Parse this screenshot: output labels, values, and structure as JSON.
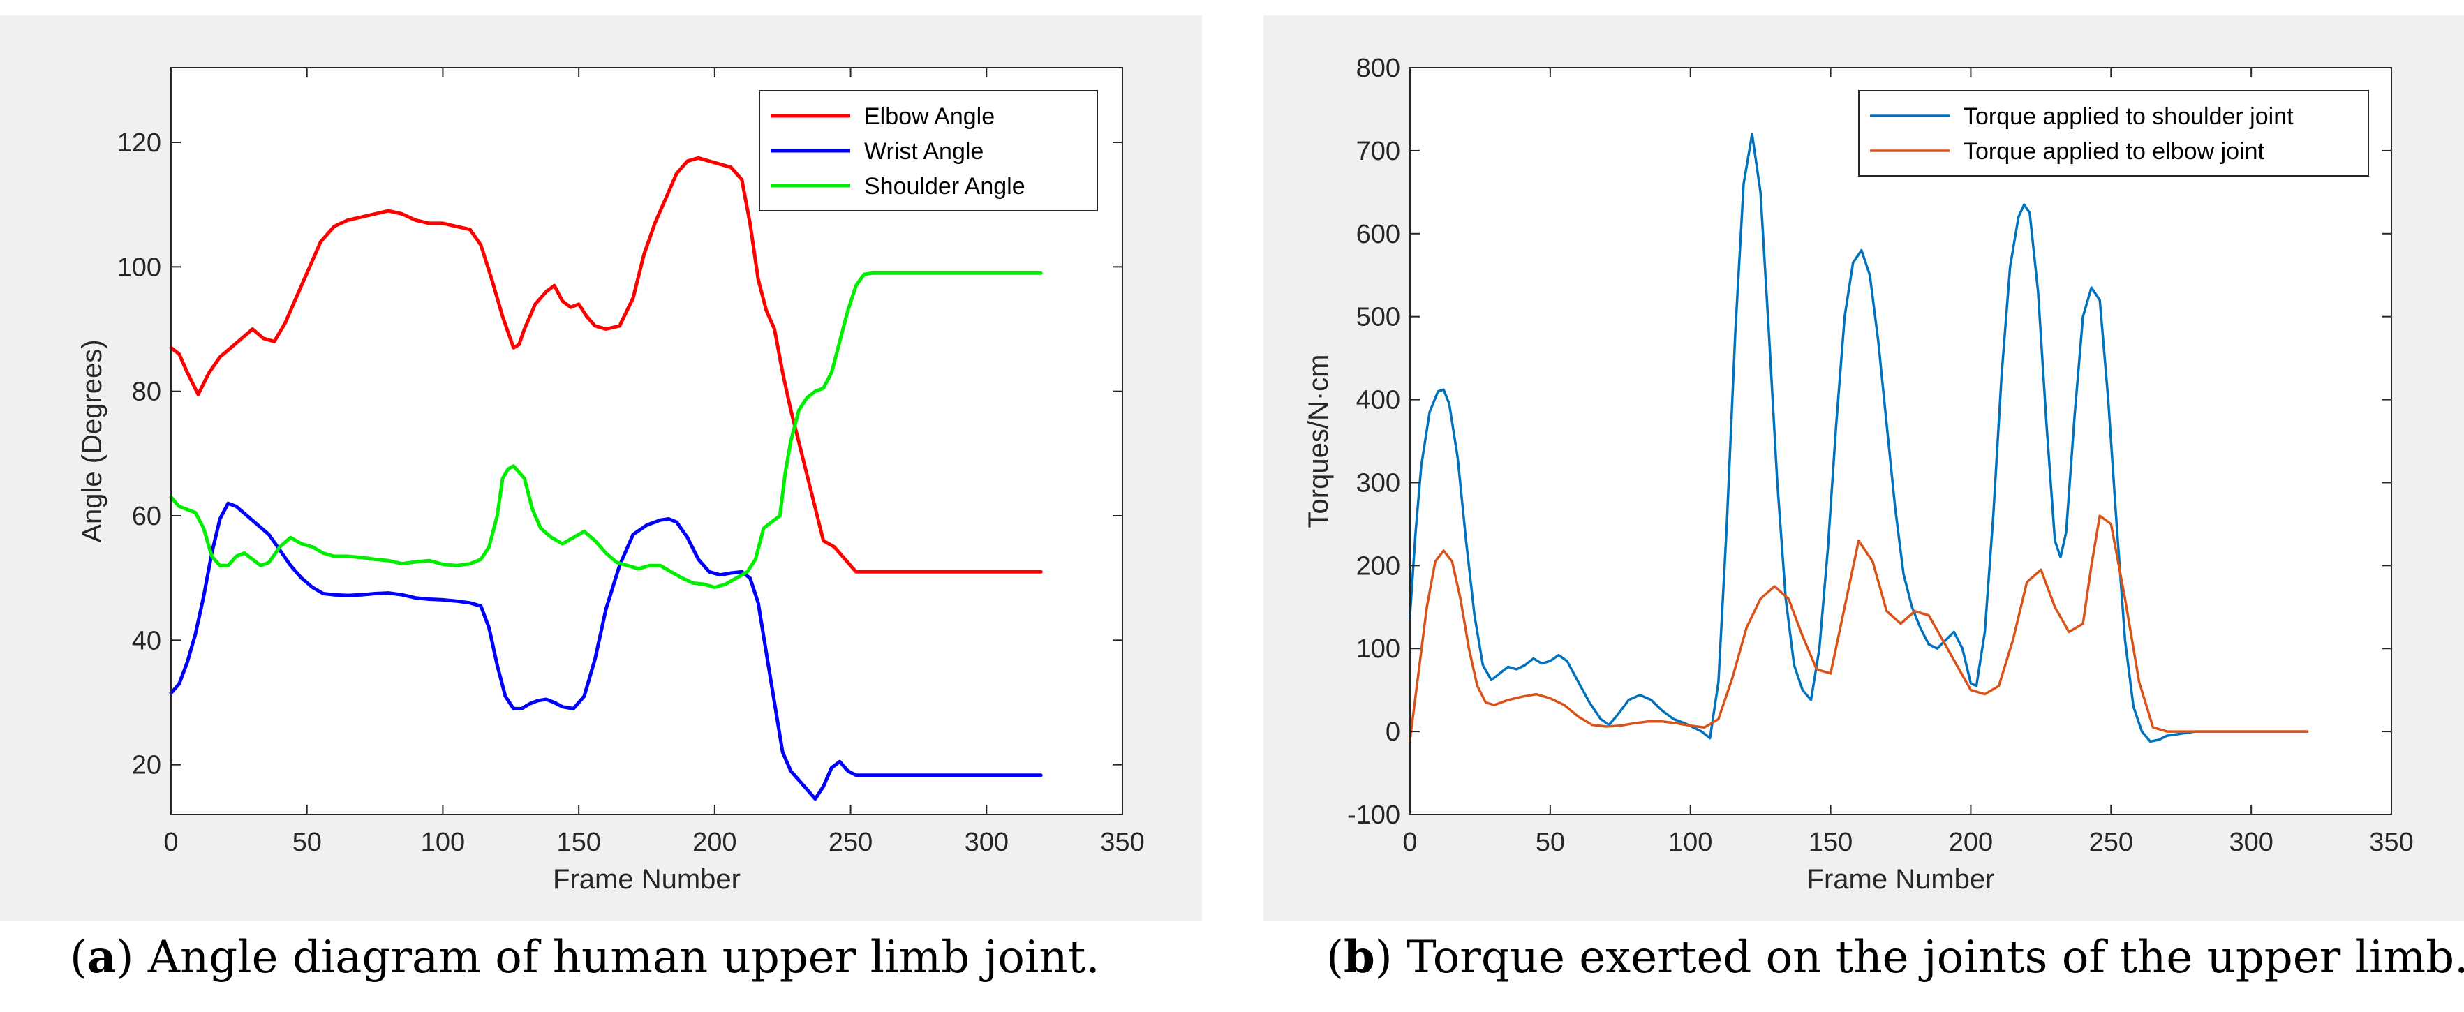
{
  "captions": {
    "a_letter": "a",
    "a_text": " Angle diagram of human upper limb joint.",
    "b_letter": "b",
    "b_text": " Torque exerted on the joints of the upper limb."
  },
  "chart_data": [
    {
      "type": "line",
      "panel": "a",
      "title": "",
      "xlabel": "Frame Number",
      "ylabel": "Angle (Degrees)",
      "xlim": [
        0,
        350
      ],
      "ylim": [
        12,
        132
      ],
      "xticks": [
        0,
        50,
        100,
        150,
        200,
        250,
        300,
        350
      ],
      "yticks": [
        20,
        40,
        60,
        80,
        100,
        120
      ],
      "legend_position": "top-right",
      "series": [
        {
          "name": "Elbow Angle",
          "color": "#ff0000",
          "x": [
            0,
            3,
            6,
            10,
            14,
            18,
            22,
            26,
            30,
            34,
            38,
            42,
            46,
            50,
            55,
            60,
            65,
            70,
            75,
            80,
            85,
            90,
            95,
            100,
            105,
            110,
            114,
            118,
            122,
            126,
            128,
            130,
            134,
            138,
            141,
            144,
            147,
            150,
            153,
            156,
            160,
            165,
            170,
            174,
            178,
            182,
            186,
            190,
            194,
            198,
            202,
            206,
            210,
            213,
            216,
            219,
            222,
            225,
            228,
            232,
            236,
            240,
            244,
            248,
            252,
            256,
            260,
            280,
            300,
            320
          ],
          "y": [
            87,
            86,
            83,
            79.5,
            83,
            85.5,
            87,
            88.5,
            90,
            88.5,
            88,
            91,
            95,
            99,
            104,
            106.5,
            107.5,
            108,
            108.5,
            109,
            108.5,
            107.5,
            107,
            107,
            106.5,
            106,
            103.5,
            98,
            92,
            87,
            87.5,
            90,
            94,
            96,
            97,
            94.5,
            93.5,
            94,
            92,
            90.5,
            90,
            90.5,
            95,
            102,
            107,
            111,
            115,
            117,
            117.5,
            117,
            116.5,
            116,
            114,
            107,
            98,
            93,
            90,
            83,
            77,
            70,
            63,
            56,
            55,
            53,
            51,
            51,
            51,
            51,
            51,
            51
          ]
        },
        {
          "name": "Wrist Angle",
          "color": "#0000ff",
          "x": [
            0,
            3,
            6,
            9,
            12,
            15,
            18,
            21,
            24,
            28,
            32,
            36,
            40,
            44,
            48,
            52,
            56,
            60,
            65,
            70,
            75,
            80,
            85,
            90,
            95,
            100,
            105,
            110,
            114,
            117,
            120,
            123,
            126,
            129,
            132,
            135,
            138,
            141,
            144,
            148,
            152,
            156,
            160,
            165,
            170,
            175,
            180,
            183,
            186,
            190,
            194,
            198,
            202,
            206,
            210,
            213,
            216,
            219,
            222,
            225,
            228,
            231,
            234,
            237,
            240,
            243,
            246,
            249,
            252,
            255,
            260,
            280,
            300,
            320
          ],
          "y": [
            31.5,
            33,
            36.5,
            41,
            47,
            54,
            59.5,
            62,
            61.5,
            60,
            58.5,
            57,
            54.5,
            52,
            50,
            48.5,
            47.5,
            47.3,
            47.2,
            47.3,
            47.5,
            47.6,
            47.3,
            46.8,
            46.6,
            46.5,
            46.3,
            46,
            45.5,
            42,
            36,
            31,
            29,
            29,
            29.8,
            30.3,
            30.5,
            30,
            29.3,
            29,
            31,
            37,
            45,
            52,
            57,
            58.5,
            59.3,
            59.5,
            59,
            56.5,
            53,
            51,
            50.5,
            50.8,
            51,
            50,
            46,
            38,
            30,
            22,
            19,
            17.5,
            16,
            14.5,
            16.5,
            19.5,
            20.5,
            19,
            18.3,
            18.3,
            18.3,
            18.3,
            18.3,
            18.3
          ]
        },
        {
          "name": "Shoulder Angle",
          "color": "#00ee00",
          "x": [
            0,
            3,
            6,
            9,
            12,
            15,
            18,
            21,
            24,
            27,
            30,
            33,
            36,
            40,
            44,
            48,
            52,
            56,
            60,
            65,
            70,
            75,
            80,
            85,
            90,
            95,
            100,
            105,
            110,
            114,
            117,
            120,
            122,
            124,
            126,
            128,
            130,
            133,
            136,
            140,
            144,
            148,
            152,
            156,
            160,
            164,
            168,
            172,
            176,
            180,
            184,
            188,
            192,
            196,
            200,
            204,
            208,
            212,
            215,
            218,
            221,
            224,
            226,
            228,
            231,
            234,
            237,
            240,
            243,
            246,
            249,
            252,
            255,
            258,
            262,
            280,
            300,
            320
          ],
          "y": [
            63,
            61.5,
            61,
            60.5,
            58,
            53.5,
            52,
            52,
            53.5,
            54,
            53,
            52,
            52.5,
            55,
            56.5,
            55.5,
            55,
            54,
            53.5,
            53.5,
            53.3,
            53,
            52.8,
            52.3,
            52.6,
            52.8,
            52.2,
            52,
            52.3,
            53,
            55,
            60,
            66,
            67.5,
            68,
            67,
            66,
            61,
            58,
            56.5,
            55.5,
            56.5,
            57.5,
            56,
            54,
            52.5,
            52,
            51.5,
            52,
            52,
            51,
            50,
            49.2,
            49,
            48.5,
            49,
            50,
            51,
            53,
            58,
            59,
            60,
            67,
            72,
            77,
            79,
            80,
            80.5,
            83,
            88,
            93,
            97,
            98.8,
            99,
            99,
            99,
            99,
            99
          ]
        }
      ]
    },
    {
      "type": "line",
      "panel": "b",
      "title": "",
      "xlabel": "Frame Number",
      "ylabel": "Torques/N·cm",
      "xlim": [
        0,
        350
      ],
      "ylim": [
        -100,
        800
      ],
      "xticks": [
        0,
        50,
        100,
        150,
        200,
        250,
        300,
        350
      ],
      "yticks": [
        -100,
        0,
        100,
        200,
        300,
        400,
        500,
        600,
        700,
        800
      ],
      "legend_position": "top-right",
      "series": [
        {
          "name": "Torque applied to shoulder joint",
          "color": "#0072bd",
          "x": [
            0,
            2,
            4,
            7,
            10,
            12,
            14,
            17,
            20,
            23,
            26,
            29,
            32,
            35,
            38,
            41,
            44,
            47,
            50,
            53,
            56,
            60,
            64,
            68,
            71,
            74,
            78,
            82,
            86,
            90,
            94,
            98,
            101,
            104,
            107,
            110,
            113,
            116,
            119,
            122,
            125,
            128,
            131,
            134,
            137,
            140,
            143,
            146,
            149,
            152,
            155,
            158,
            161,
            164,
            167,
            170,
            173,
            176,
            179,
            182,
            185,
            188,
            191,
            194,
            197,
            200,
            202,
            205,
            208,
            211,
            214,
            217,
            219,
            221,
            224,
            227,
            230,
            232,
            234,
            237,
            240,
            243,
            246,
            249,
            252,
            255,
            258,
            261,
            264,
            267,
            270,
            280,
            300,
            320
          ],
          "y": [
            140,
            240,
            320,
            385,
            410,
            412,
            395,
            330,
            230,
            140,
            80,
            62,
            70,
            78,
            75,
            80,
            88,
            82,
            85,
            92,
            85,
            60,
            35,
            15,
            8,
            20,
            38,
            44,
            38,
            25,
            15,
            10,
            5,
            0,
            -8,
            60,
            250,
            480,
            660,
            720,
            650,
            480,
            300,
            160,
            80,
            50,
            38,
            100,
            220,
            370,
            500,
            565,
            580,
            550,
            470,
            370,
            270,
            190,
            150,
            125,
            105,
            100,
            110,
            120,
            100,
            58,
            55,
            120,
            260,
            430,
            560,
            620,
            635,
            625,
            530,
            370,
            230,
            210,
            240,
            380,
            500,
            535,
            520,
            400,
            250,
            110,
            30,
            0,
            -12,
            -10,
            -5,
            0,
            0,
            0
          ]
        },
        {
          "name": "Torque applied to elbow joint",
          "color": "#d95319",
          "x": [
            0,
            3,
            6,
            9,
            12,
            15,
            18,
            21,
            24,
            27,
            30,
            35,
            40,
            45,
            50,
            55,
            60,
            65,
            70,
            75,
            80,
            85,
            90,
            95,
            100,
            105,
            110,
            115,
            120,
            125,
            130,
            135,
            140,
            145,
            150,
            155,
            160,
            165,
            170,
            175,
            180,
            185,
            190,
            195,
            200,
            205,
            210,
            215,
            220,
            225,
            230,
            235,
            240,
            243,
            246,
            250,
            255,
            260,
            265,
            270,
            280,
            300,
            320
          ],
          "y": [
            -10,
            70,
            150,
            205,
            218,
            205,
            160,
            100,
            55,
            35,
            32,
            38,
            42,
            45,
            40,
            32,
            18,
            8,
            6,
            7,
            10,
            12,
            12,
            10,
            7,
            5,
            15,
            65,
            125,
            160,
            175,
            160,
            115,
            75,
            70,
            150,
            230,
            205,
            145,
            130,
            145,
            140,
            110,
            80,
            50,
            45,
            55,
            110,
            180,
            195,
            150,
            120,
            130,
            200,
            260,
            250,
            160,
            60,
            5,
            0,
            0,
            0,
            0
          ]
        }
      ]
    }
  ]
}
